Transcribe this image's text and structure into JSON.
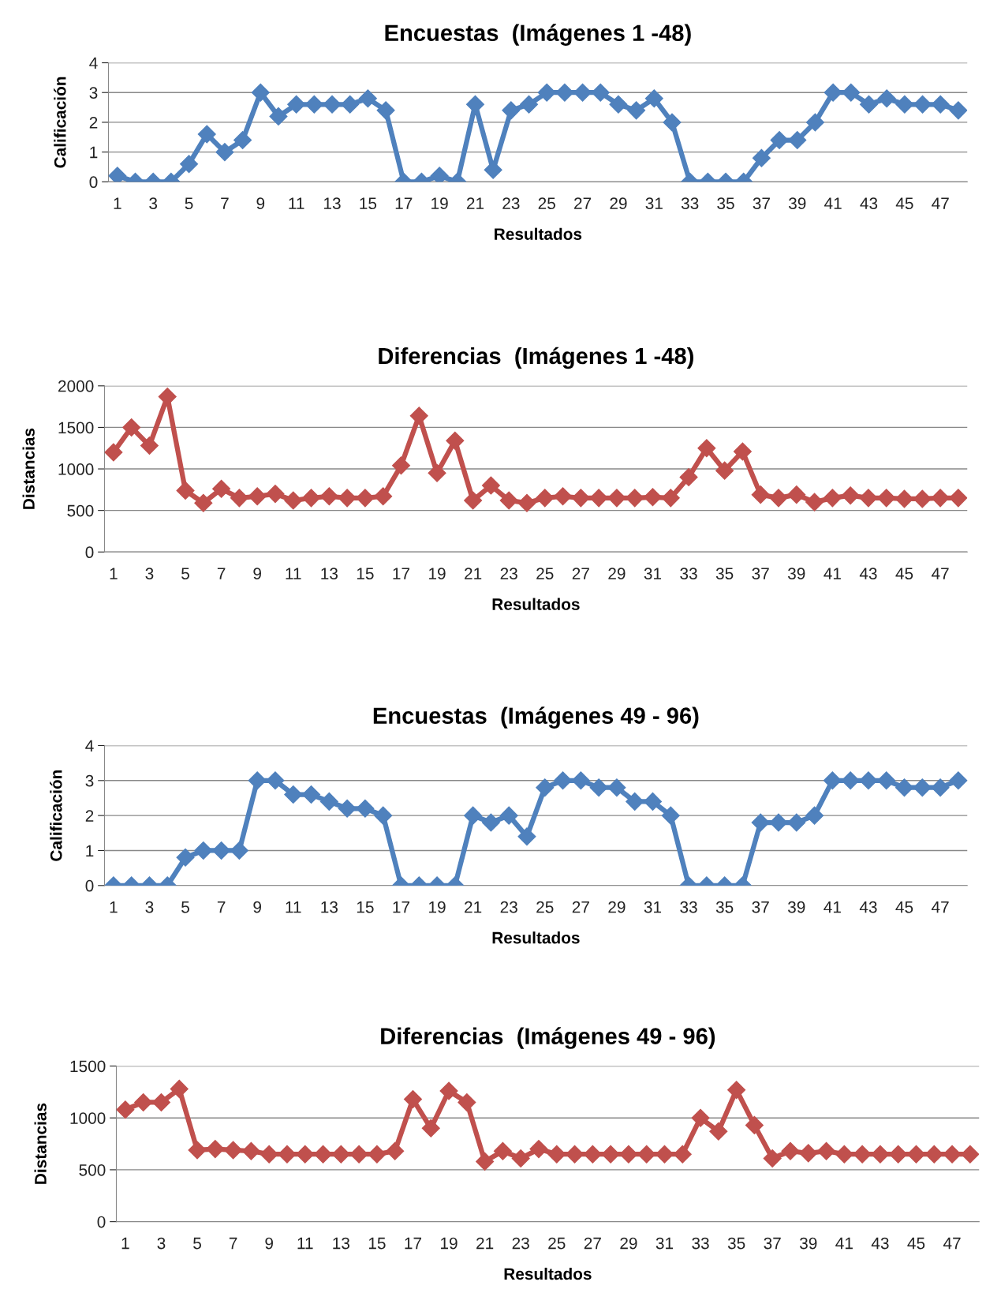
{
  "chart_data": [
    {
      "type": "line",
      "title": "Encuestas  (Imágenes 1 -48)",
      "xlabel": "Resultados",
      "ylabel": "Calificación",
      "categories": [
        "1",
        null,
        "3",
        null,
        "5",
        null,
        "7",
        null,
        "9",
        null,
        "11",
        null,
        "13",
        null,
        "15",
        null,
        "17",
        null,
        "19",
        null,
        "21",
        null,
        "23",
        null,
        "25",
        null,
        "27",
        null,
        "29",
        null,
        "31",
        null,
        "33",
        null,
        "35",
        null,
        "37",
        null,
        "39",
        null,
        "41",
        null,
        "43",
        null,
        "45",
        null,
        "47",
        null
      ],
      "series": [
        {
          "color": "#4f81bd",
          "values": [
            0.2,
            0,
            0,
            0,
            0.6,
            1.6,
            1,
            1.4,
            3,
            2.2,
            2.6,
            2.6,
            2.6,
            2.6,
            2.8,
            2.4,
            0,
            0,
            0.2,
            0,
            2.6,
            0.4,
            2.4,
            2.6,
            3,
            3,
            3,
            3,
            2.6,
            2.4,
            2.8,
            2,
            0,
            0,
            0,
            0,
            0.8,
            1.4,
            1.4,
            2,
            3,
            3,
            2.6,
            2.8,
            2.6,
            2.6,
            2.6,
            2.4
          ]
        }
      ],
      "ylim": [
        0,
        4
      ],
      "yticks": [
        0,
        1,
        2,
        3,
        4
      ],
      "grid": "y",
      "marker": "diamond",
      "line_style": "solid"
    },
    {
      "type": "line",
      "title": "Diferencias  (Imágenes 1 -48)",
      "xlabel": "Resultados",
      "ylabel": "Distancias",
      "categories": [
        "1",
        null,
        "3",
        null,
        "5",
        null,
        "7",
        null,
        "9",
        null,
        "11",
        null,
        "13",
        null,
        "15",
        null,
        "17",
        null,
        "19",
        null,
        "21",
        null,
        "23",
        null,
        "25",
        null,
        "27",
        null,
        "29",
        null,
        "31",
        null,
        "33",
        null,
        "35",
        null,
        "37",
        null,
        "39",
        null,
        "41",
        null,
        "43",
        null,
        "45",
        null,
        "47",
        null
      ],
      "series": [
        {
          "color": "#c0504d",
          "values": [
            1200,
            1500,
            1280,
            1870,
            740,
            590,
            760,
            650,
            670,
            700,
            620,
            650,
            670,
            650,
            650,
            670,
            1040,
            1640,
            950,
            1340,
            620,
            800,
            620,
            590,
            650,
            670,
            650,
            650,
            650,
            650,
            660,
            650,
            900,
            1250,
            980,
            1210,
            690,
            650,
            690,
            600,
            650,
            680,
            650,
            650,
            640,
            640,
            650,
            650
          ]
        }
      ],
      "ylim": [
        0,
        2000
      ],
      "yticks": [
        0,
        500,
        1000,
        1500,
        2000
      ],
      "grid": "y",
      "marker": "diamond",
      "line_style": "solid"
    },
    {
      "type": "line",
      "title": "Encuestas  (Imágenes 49 - 96)",
      "xlabel": "Resultados",
      "ylabel": "Calificación",
      "categories": [
        "1",
        null,
        "3",
        null,
        "5",
        null,
        "7",
        null,
        "9",
        null,
        "11",
        null,
        "13",
        null,
        "15",
        null,
        "17",
        null,
        "19",
        null,
        "21",
        null,
        "23",
        null,
        "25",
        null,
        "27",
        null,
        "29",
        null,
        "31",
        null,
        "33",
        null,
        "35",
        null,
        "37",
        null,
        "39",
        null,
        "41",
        null,
        "43",
        null,
        "45",
        null,
        "47",
        null
      ],
      "series": [
        {
          "color": "#4f81bd",
          "values": [
            0,
            0,
            0,
            0,
            0.8,
            1,
            1,
            1,
            3,
            3,
            2.6,
            2.6,
            2.4,
            2.2,
            2.2,
            2,
            0,
            0,
            0,
            0,
            2,
            1.8,
            2,
            1.4,
            2.8,
            3,
            3,
            2.8,
            2.8,
            2.4,
            2.4,
            2,
            0,
            0,
            0,
            0,
            1.8,
            1.8,
            1.8,
            2,
            3,
            3,
            3,
            3,
            2.8,
            2.8,
            2.8,
            3
          ]
        }
      ],
      "ylim": [
        0,
        4
      ],
      "yticks": [
        0,
        1,
        2,
        3,
        4
      ],
      "grid": "y",
      "marker": "diamond",
      "line_style": "solid"
    },
    {
      "type": "line",
      "title": "Diferencias  (Imágenes 49 - 96)",
      "xlabel": "Resultados",
      "ylabel": "Distancias",
      "categories": [
        "1",
        null,
        "3",
        null,
        "5",
        null,
        "7",
        null,
        "9",
        null,
        "11",
        null,
        "13",
        null,
        "15",
        null,
        "17",
        null,
        "19",
        null,
        "21",
        null,
        "23",
        null,
        "25",
        null,
        "27",
        null,
        "29",
        null,
        "31",
        null,
        "33",
        null,
        "35",
        null,
        "37",
        null,
        "39",
        null,
        "41",
        null,
        "43",
        null,
        "45",
        null,
        "47",
        null
      ],
      "series": [
        {
          "color": "#c0504d",
          "values": [
            1080,
            1150,
            1150,
            1280,
            690,
            700,
            690,
            680,
            650,
            650,
            650,
            650,
            650,
            650,
            650,
            680,
            1180,
            900,
            1260,
            1150,
            580,
            680,
            610,
            700,
            650,
            650,
            650,
            650,
            650,
            650,
            650,
            650,
            1000,
            870,
            1270,
            930,
            610,
            680,
            660,
            680,
            650,
            650,
            650,
            650,
            650,
            650,
            650,
            650
          ]
        }
      ],
      "ylim": [
        0,
        1500
      ],
      "yticks": [
        0,
        500,
        1000,
        1500
      ],
      "grid": "y",
      "marker": "diamond",
      "line_style": "solid"
    }
  ]
}
